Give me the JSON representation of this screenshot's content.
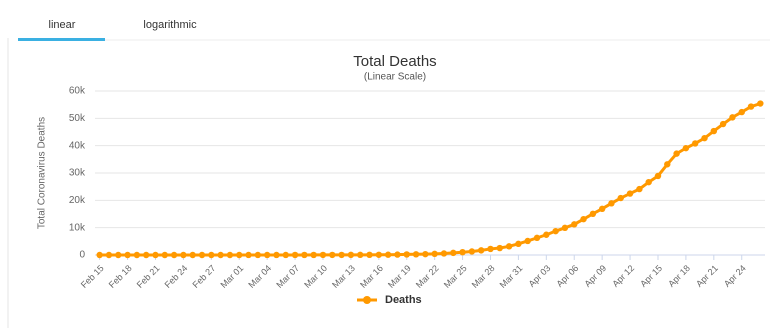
{
  "tabs": [
    "linear",
    "logarithmic"
  ],
  "chart_data": {
    "type": "line",
    "title": "Total Deaths",
    "subtitle": "(Linear Scale)",
    "y_label": "Total Coronavirus Deaths",
    "categories": [
      "Feb 15",
      null,
      null,
      "Feb 18",
      null,
      null,
      "Feb 21",
      null,
      null,
      "Feb 24",
      null,
      null,
      "Feb 27",
      null,
      null,
      "Mar 01",
      null,
      null,
      "Mar 04",
      null,
      null,
      "Mar 07",
      null,
      null,
      "Mar 10",
      null,
      null,
      "Mar 13",
      null,
      null,
      "Mar 16",
      null,
      null,
      "Mar 19",
      null,
      null,
      "Mar 22",
      null,
      null,
      "Mar 25",
      null,
      null,
      "Mar 28",
      null,
      null,
      "Mar 31",
      null,
      null,
      "Apr 03",
      null,
      null,
      "Apr 06",
      null,
      null,
      "Apr 09",
      null,
      null,
      "Apr 12",
      null,
      null,
      "Apr 15",
      null,
      null,
      "Apr 18",
      null,
      null,
      "Apr 21",
      null,
      null,
      "Apr 24",
      null,
      null
    ],
    "series": [
      {
        "name": "Deaths",
        "color": "#FF9900",
        "values": [
          0,
          0,
          0,
          0,
          0,
          0,
          0,
          0,
          0,
          0,
          0,
          0,
          0,
          0,
          1,
          2,
          6,
          9,
          11,
          12,
          15,
          19,
          22,
          26,
          30,
          38,
          41,
          48,
          57,
          68,
          86,
          109,
          150,
          207,
          256,
          302,
          417,
          554,
          780,
          1027,
          1295,
          1695,
          2221,
          2541,
          3168,
          4076,
          5133,
          6270,
          7406,
          8722,
          9936,
          11216,
          13118,
          15062,
          16890,
          18913,
          20844,
          22480,
          24113,
          26644,
          28920,
          33189,
          37088,
          39095,
          40820,
          42746,
          45340,
          47912,
          50354,
          52283,
          54303,
          55415
        ]
      }
    ],
    "ylim": [
      0,
      60000
    ],
    "yticks": [
      0,
      {
        "value": 10000,
        "label": "10k"
      },
      {
        "value": 20000,
        "label": "20k"
      },
      {
        "value": 30000,
        "label": "30k"
      },
      {
        "value": 40000,
        "label": "40k"
      },
      {
        "value": 50000,
        "label": "50k"
      },
      {
        "value": 60000,
        "label": "60k"
      }
    ],
    "grid": true,
    "legend": "bottom"
  }
}
